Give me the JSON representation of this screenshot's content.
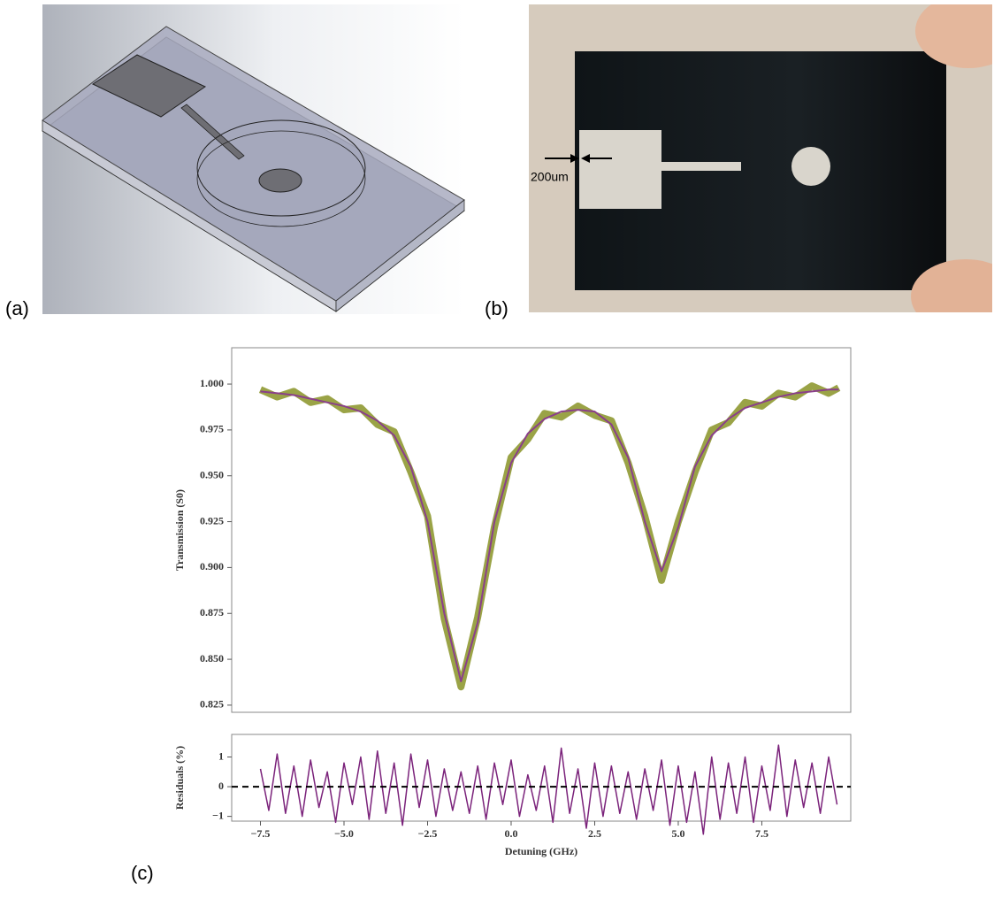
{
  "labels": {
    "a": "(a)",
    "b": "(b)",
    "c": "(c)",
    "scale": "200um"
  },
  "chart_data": [
    {
      "type": "line",
      "ylabel": "Transmission (S0)",
      "x": [
        -7.5,
        -7,
        -6.5,
        -6,
        -5.5,
        -5,
        -4.5,
        -4,
        -3.5,
        -3,
        -2.5,
        -2,
        -1.5,
        -1,
        -0.5,
        0,
        0.5,
        1,
        1.5,
        2,
        2.5,
        3,
        3.5,
        4,
        4.5,
        5,
        5.5,
        6,
        6.5,
        7,
        7.5,
        8,
        8.5,
        9,
        9.5,
        9.8
      ],
      "series": [
        {
          "color": "#9aa346",
          "values": [
            0.997,
            0.993,
            0.996,
            0.99,
            0.992,
            0.986,
            0.987,
            0.978,
            0.974,
            0.952,
            0.928,
            0.872,
            0.835,
            0.873,
            0.922,
            0.96,
            0.97,
            0.984,
            0.982,
            0.988,
            0.983,
            0.98,
            0.957,
            0.928,
            0.893,
            0.925,
            0.952,
            0.975,
            0.979,
            0.99,
            0.988,
            0.995,
            0.993,
            0.999,
            0.995,
            0.998
          ]
        },
        {
          "color": "#8a3f8a",
          "values": [
            0.996,
            0.995,
            0.994,
            0.992,
            0.99,
            0.988,
            0.985,
            0.98,
            0.972,
            0.955,
            0.925,
            0.875,
            0.838,
            0.87,
            0.925,
            0.957,
            0.973,
            0.981,
            0.985,
            0.986,
            0.985,
            0.978,
            0.96,
            0.925,
            0.898,
            0.922,
            0.955,
            0.972,
            0.981,
            0.987,
            0.99,
            0.993,
            0.995,
            0.996,
            0.997,
            0.997
          ]
        }
      ],
      "xlim": [
        -8.36,
        10.16
      ],
      "ylim": [
        0.8211,
        1.0198
      ],
      "yticks": [
        0.825,
        {
          "value": 0.85,
          "label": "0.850"
        },
        0.875,
        {
          "value": 0.9,
          "label": "0.900"
        },
        0.925,
        {
          "value": 0.95,
          "label": "0.950"
        },
        0.975,
        {
          "value": 1,
          "label": "1.000"
        }
      ]
    },
    {
      "type": "line",
      "ylabel": "Residuals (%)",
      "xlabel": "Detuning (GHz)",
      "x": [
        -7.5,
        -7.25,
        -7,
        -6.75,
        -6.5,
        -6.25,
        -6,
        -5.75,
        -5.5,
        -5.25,
        -5,
        -4.75,
        -4.5,
        -4.25,
        -4,
        -3.75,
        -3.5,
        -3.25,
        -3,
        -2.75,
        -2.5,
        -2.25,
        -2,
        -1.75,
        -1.5,
        -1.25,
        -1,
        -0.75,
        -0.5,
        -0.25,
        0,
        0.25,
        0.5,
        0.75,
        1,
        1.25,
        1.5,
        1.75,
        2,
        2.25,
        2.5,
        2.75,
        3,
        3.25,
        3.5,
        3.75,
        4,
        4.25,
        4.5,
        4.75,
        5,
        5.25,
        5.5,
        5.75,
        6,
        6.25,
        6.5,
        6.75,
        7,
        7.25,
        7.5,
        7.75,
        8,
        8.25,
        8.5,
        8.75,
        9,
        9.25,
        9.5,
        9.75
      ],
      "series": [
        {
          "color": "#7b237b",
          "values": [
            0.6,
            -0.8,
            1.1,
            -0.9,
            0.7,
            -1.0,
            0.9,
            -0.7,
            0.5,
            -1.2,
            0.8,
            -0.6,
            1.0,
            -1.1,
            1.2,
            -0.9,
            0.8,
            -1.3,
            1.1,
            -0.7,
            0.9,
            -1.0,
            0.6,
            -0.8,
            0.5,
            -0.9,
            0.7,
            -1.1,
            0.8,
            -0.6,
            0.9,
            -1.0,
            0.4,
            -0.8,
            0.7,
            -1.2,
            1.3,
            -0.9,
            0.6,
            -1.4,
            0.8,
            -1.0,
            0.7,
            -0.9,
            0.5,
            -1.1,
            0.6,
            -0.8,
            0.9,
            -1.3,
            0.7,
            -1.2,
            0.5,
            -1.6,
            1.0,
            -1.1,
            0.8,
            -0.9,
            1.0,
            -1.2,
            0.7,
            -0.8,
            1.4,
            -1.0,
            0.9,
            -0.7,
            0.8,
            -0.9,
            1.0,
            -0.6
          ]
        }
      ],
      "reference_line": 0,
      "xlim": [
        -8.36,
        10.16
      ],
      "ylim": [
        -1.16,
        1.76
      ],
      "xticks": [
        {
          "value": -7.5,
          "label": "−7.5"
        },
        {
          "value": -5,
          "label": "−5.0"
        },
        {
          "value": -2.5,
          "label": "−2.5"
        },
        {
          "value": 0,
          "label": "0.0"
        },
        2.5,
        {
          "value": 5,
          "label": "5.0"
        },
        7.5
      ],
      "yticks": [
        {
          "value": -1,
          "label": "−1"
        },
        0,
        1
      ]
    }
  ]
}
